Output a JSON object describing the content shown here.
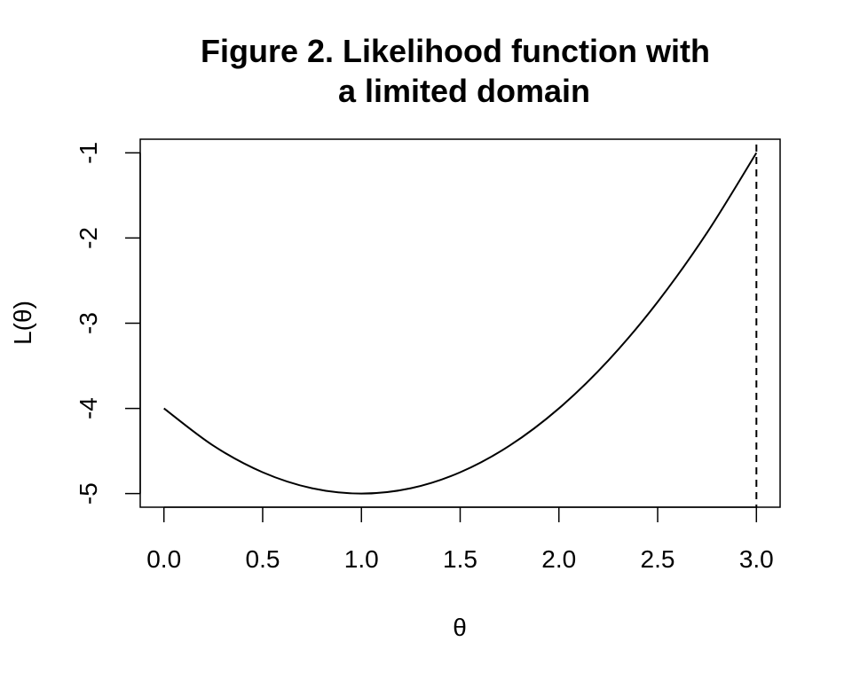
{
  "chart_data": {
    "type": "line",
    "title_lines": [
      "Figure 2. Likelihood function with",
      "a limited domain"
    ],
    "xlabel": "θ",
    "ylabel": "L(θ)",
    "xlim": [
      -0.12,
      3.12
    ],
    "ylim": [
      -5.16,
      -0.84
    ],
    "xticks": [
      0.0,
      0.5,
      1.0,
      1.5,
      2.0,
      2.5,
      3.0
    ],
    "xtick_labels": [
      "0.0",
      "0.5",
      "1.0",
      "1.5",
      "2.0",
      "2.5",
      "3.0"
    ],
    "yticks": [
      -1,
      -2,
      -3,
      -4,
      -5
    ],
    "ytick_labels": [
      "-1",
      "-2",
      "-3",
      "-4",
      "-5"
    ],
    "series": [
      {
        "style": "solid",
        "color": "#000000",
        "x": [
          0.0,
          0.25,
          0.5,
          0.75,
          1.0,
          1.25,
          1.5,
          1.75,
          2.0,
          2.25,
          2.5,
          2.75,
          3.0
        ],
        "y": [
          -4.0,
          -4.4375,
          -4.75,
          -4.9375,
          -5.0,
          -4.9375,
          -4.75,
          -4.4375,
          -4.0,
          -3.4375,
          -2.75,
          -1.9375,
          -1.0
        ]
      }
    ],
    "vline": {
      "x": 3.0,
      "style": "dashed",
      "color": "#000000"
    },
    "grid": false,
    "legend": "none"
  }
}
